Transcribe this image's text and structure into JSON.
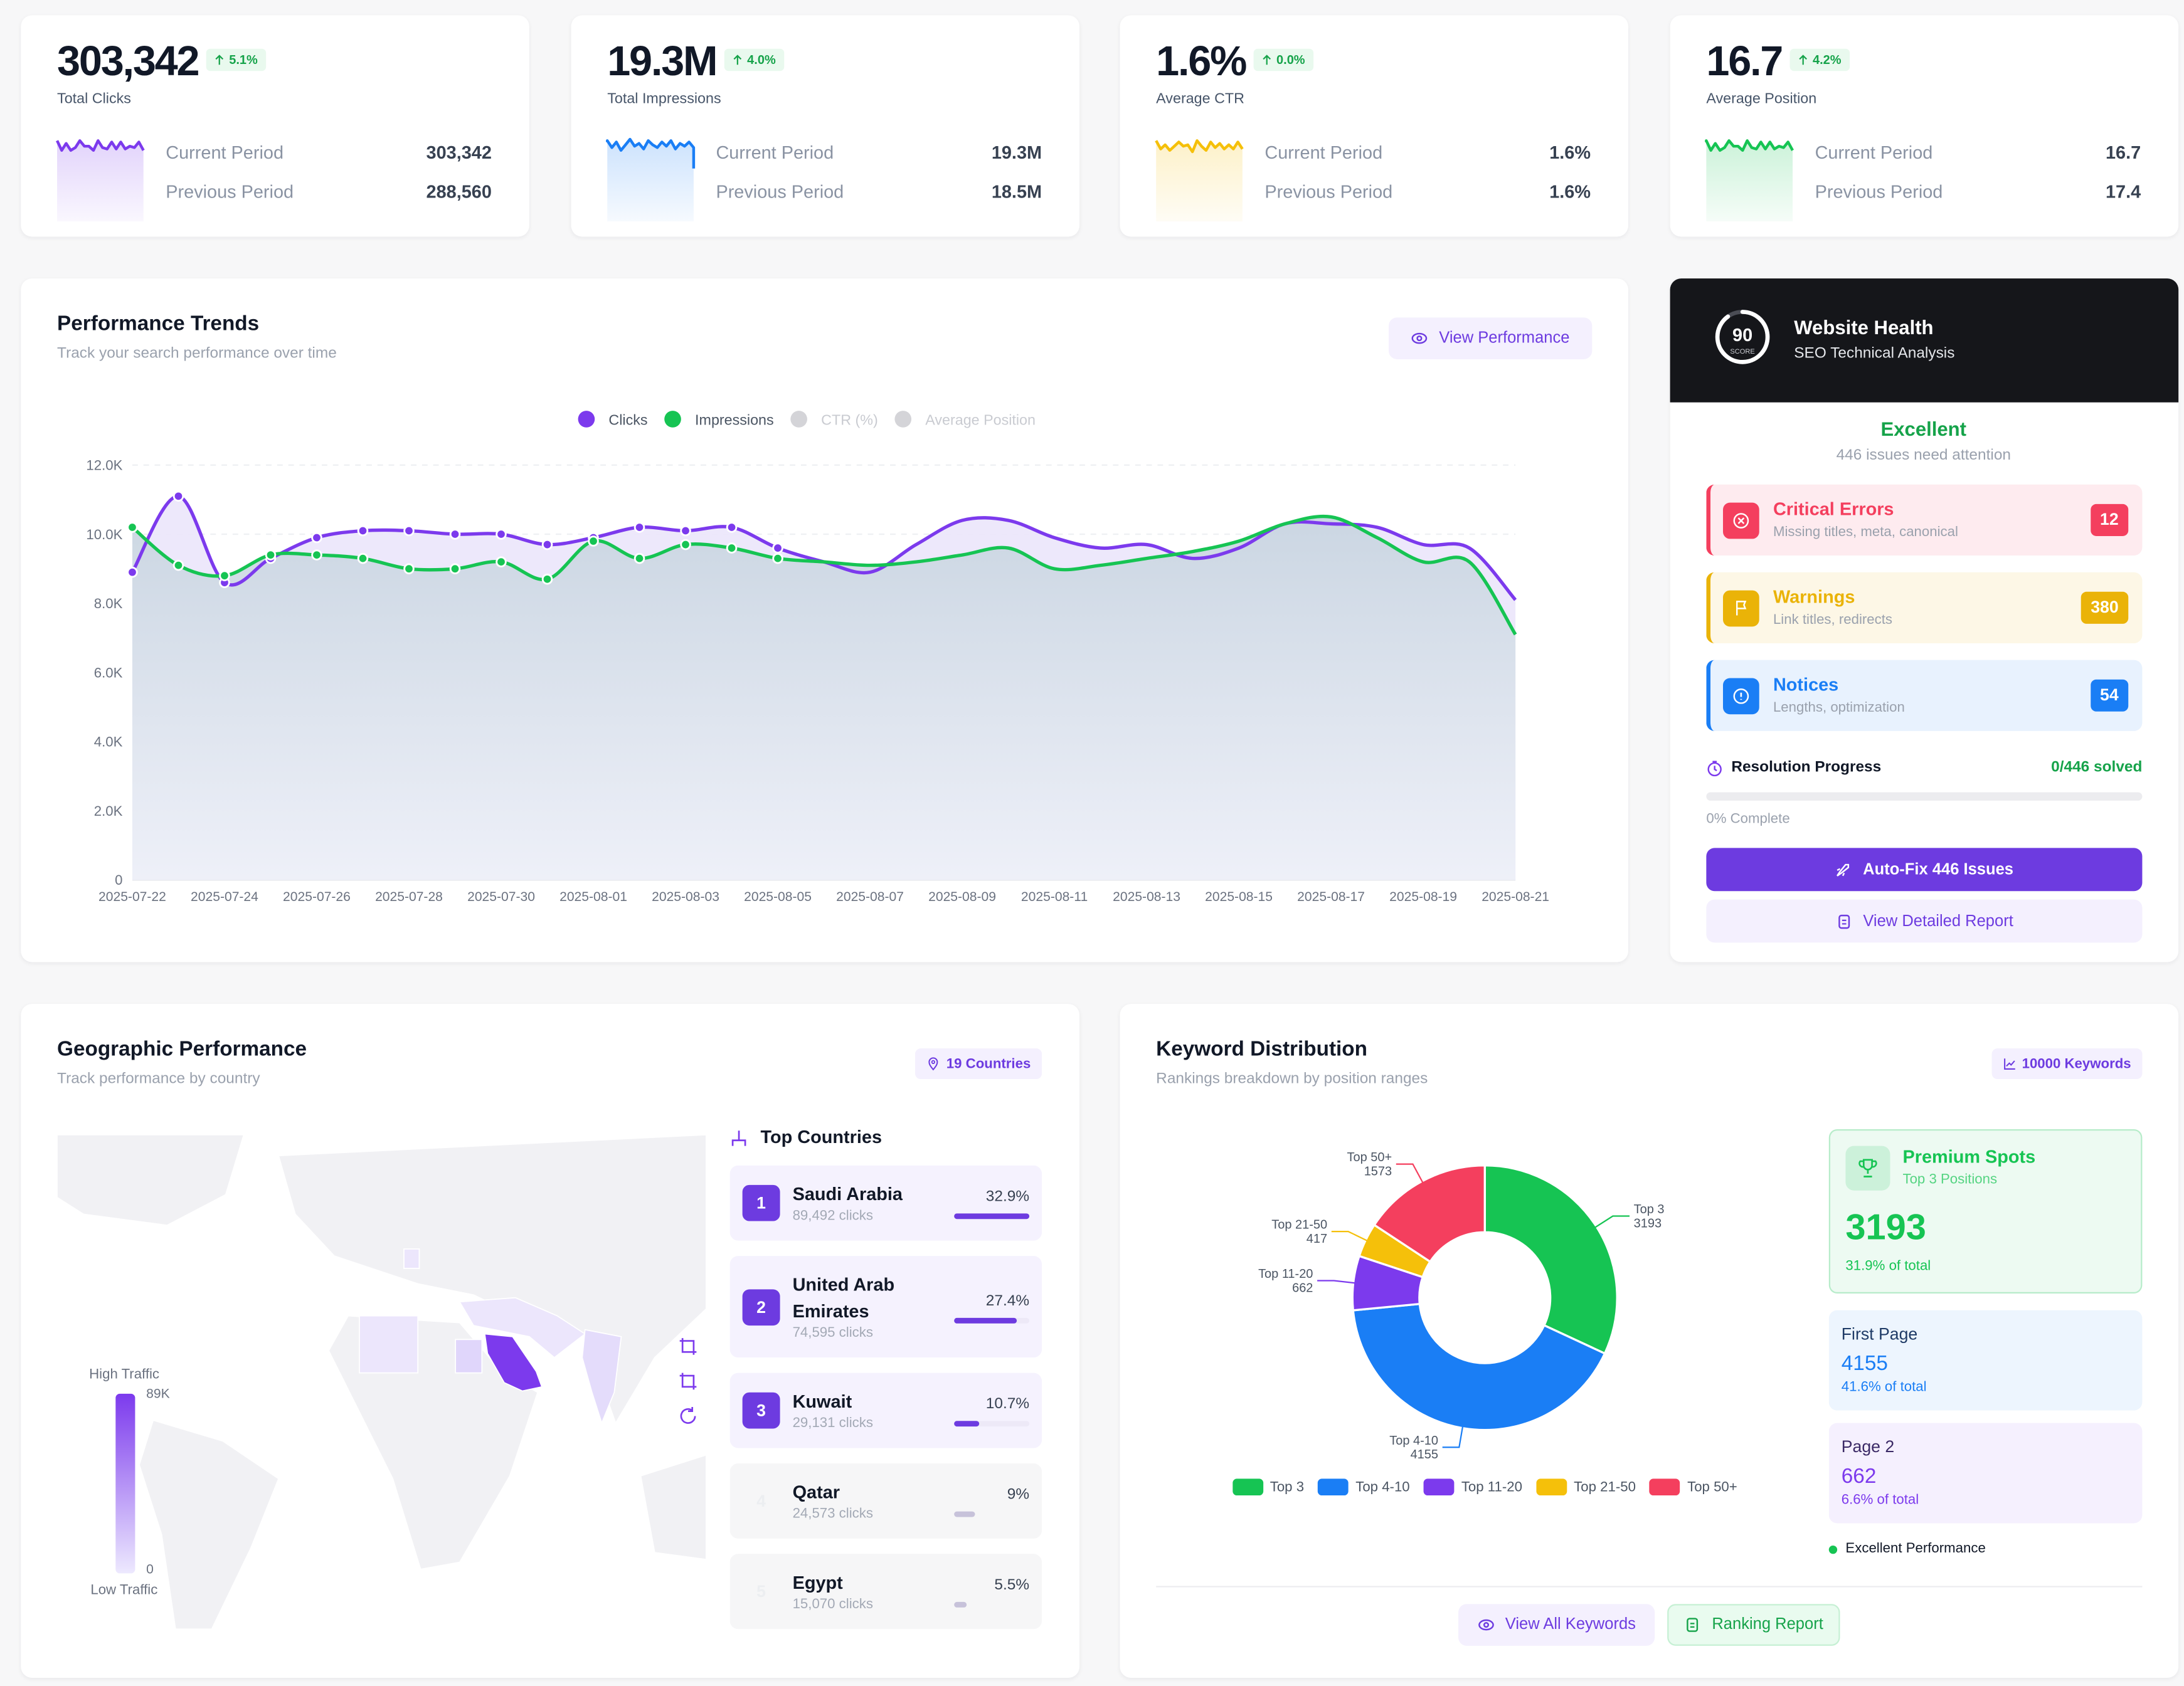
{
  "kpis": [
    {
      "value": "303,342",
      "change": "5.1%",
      "label": "Total Clicks",
      "current_label": "Current Period",
      "previous_label": "Previous Period",
      "previous": "288,560",
      "color": "#7c3aed"
    },
    {
      "value": "19.3M",
      "change": "4.0%",
      "label": "Total Impressions",
      "current_label": "Current Period",
      "previous_label": "Previous Period",
      "previous": "18.5M",
      "color": "#1a7ef5"
    },
    {
      "value": "1.6%",
      "change": "0.0%",
      "label": "Average CTR",
      "current_label": "Current Period",
      "previous_label": "Previous Period",
      "previous": "1.6%",
      "color": "#f5c00a"
    },
    {
      "value": "16.7",
      "change": "4.2%",
      "label": "Average Position",
      "current_label": "Current Period",
      "previous_label": "Previous Period",
      "previous": "17.4",
      "color": "#16c453"
    }
  ],
  "performance_button": "View Performance",
  "chart_data": [
    {
      "type": "line",
      "title": "Performance Trends",
      "subtitle": "Track your search performance over time",
      "x": [
        "2025-07-22",
        "2025-07-23",
        "2025-07-24",
        "2025-07-25",
        "2025-07-26",
        "2025-07-27",
        "2025-07-28",
        "2025-07-29",
        "2025-07-30",
        "2025-07-31",
        "2025-08-01",
        "2025-08-02",
        "2025-08-03",
        "2025-08-04",
        "2025-08-05",
        "2025-08-06",
        "2025-08-07",
        "2025-08-08",
        "2025-08-09",
        "2025-08-10",
        "2025-08-11",
        "2025-08-12",
        "2025-08-13",
        "2025-08-14",
        "2025-08-15",
        "2025-08-16",
        "2025-08-17",
        "2025-08-18",
        "2025-08-19",
        "2025-08-20",
        "2025-08-21"
      ],
      "xticks": [
        "2025-07-22",
        "2025-07-24",
        "2025-07-26",
        "2025-07-28",
        "2025-07-30",
        "2025-08-01",
        "2025-08-03",
        "2025-08-05",
        "2025-08-07",
        "2025-08-09",
        "2025-08-11",
        "2025-08-13",
        "2025-08-15",
        "2025-08-17",
        "2025-08-19",
        "2025-08-21"
      ],
      "series": [
        {
          "name": "Clicks",
          "color": "#7c3aed",
          "values": [
            8900,
            11100,
            8600,
            9300,
            9900,
            10100,
            10100,
            10000,
            10000,
            9700,
            9900,
            10200,
            10100,
            10200,
            9600,
            9200,
            8900,
            9700,
            10400,
            10400,
            9900,
            9600,
            9700,
            9300,
            9600,
            10300,
            10300,
            10200,
            9700,
            9600,
            8100
          ]
        },
        {
          "name": "Impressions",
          "color": "#16c453",
          "values": [
            10200,
            9100,
            8800,
            9400,
            9400,
            9300,
            9000,
            9000,
            9200,
            8700,
            9800,
            9300,
            9700,
            9600,
            9300,
            9200,
            9100,
            9200,
            9400,
            9600,
            9000,
            9100,
            9300,
            9500,
            9800,
            10300,
            10500,
            9900,
            9200,
            9200,
            7100
          ]
        },
        {
          "name": "CTR (%)",
          "color": "#d4d4d8",
          "visible": false
        },
        {
          "name": "Average Position",
          "color": "#d4d4d8",
          "visible": false
        }
      ],
      "ylim": [
        0,
        12000
      ],
      "yticks": [
        0,
        {
          "value": 2000,
          "label": "2.0K"
        },
        {
          "value": 4000,
          "label": "4.0K"
        },
        {
          "value": 6000,
          "label": "6.0K"
        },
        {
          "value": 8000,
          "label": "8.0K"
        },
        {
          "value": 10000,
          "label": "10.0K"
        },
        {
          "value": 12000,
          "label": "12.0K"
        }
      ],
      "grid": true
    },
    {
      "type": "pie",
      "donut": true,
      "title": "Keyword Distribution",
      "subtitle": "Rankings breakdown by position ranges",
      "categories": [
        "Top 3",
        "Top 4-10",
        "Top 11-20",
        "Top 21-50",
        "Top 50+"
      ],
      "values": [
        3193,
        4155,
        662,
        417,
        1573
      ],
      "colors": [
        "#16c453",
        "#1a7ef5",
        "#7c3aed",
        "#f5c00a",
        "#f43f5e"
      ]
    }
  ],
  "health": {
    "score": 90,
    "score_label": "SCORE",
    "title": "Website Health",
    "subtitle": "SEO Technical Analysis",
    "status": "Excellent",
    "note": "446 issues need attention",
    "issues": [
      {
        "title": "Critical Errors",
        "desc": "Missing titles, meta, canonical",
        "count": 12,
        "color": "#f43f5e"
      },
      {
        "title": "Warnings",
        "desc": "Link titles, redirects",
        "count": 380,
        "color": "#eab308"
      },
      {
        "title": "Notices",
        "desc": "Lengths, optimization",
        "count": 54,
        "color": "#1a7ef5"
      }
    ],
    "progress_title": "Resolution Progress",
    "progress_solved": "0/446 solved",
    "progress_complete": "0% Complete",
    "primary_button": "Auto-Fix 446 Issues",
    "secondary_button": "View Detailed Report"
  },
  "geo": {
    "title": "Geographic Performance",
    "subtitle": "Track performance by country",
    "badge": "19 Countries",
    "legend_high": "High Traffic",
    "legend_max": "89K",
    "legend_min": "0",
    "legend_low": "Low Traffic",
    "list_title": "Top Countries",
    "countries": [
      {
        "rank": 1,
        "name": "Saudi Arabia",
        "clicks": "89,492 clicks",
        "share": 32.9,
        "share_label": "32.9%"
      },
      {
        "rank": 2,
        "name": "United Arab Emirates",
        "clicks": "74,595 clicks",
        "share": 27.4,
        "share_label": "27.4%"
      },
      {
        "rank": 3,
        "name": "Kuwait",
        "clicks": "29,131 clicks",
        "share": 10.7,
        "share_label": "10.7%"
      },
      {
        "rank": 4,
        "name": "Qatar",
        "clicks": "24,573 clicks",
        "share": 9,
        "share_label": "9%"
      },
      {
        "rank": 5,
        "name": "Egypt",
        "clicks": "15,070 clicks",
        "share": 5.5,
        "share_label": "5.5%"
      }
    ]
  },
  "keywords": {
    "badge": "10000 Keywords",
    "cards": [
      {
        "title": "Premium Spots",
        "subtitle": "Top 3 Positions",
        "share": "31.9% of total"
      },
      {
        "title": "First Page",
        "share": "41.6% of total"
      },
      {
        "title": "Page 2",
        "share": "6.6% of total"
      }
    ],
    "footer": "Excellent Performance",
    "buttons": [
      "View All Keywords",
      "Ranking Report"
    ]
  }
}
